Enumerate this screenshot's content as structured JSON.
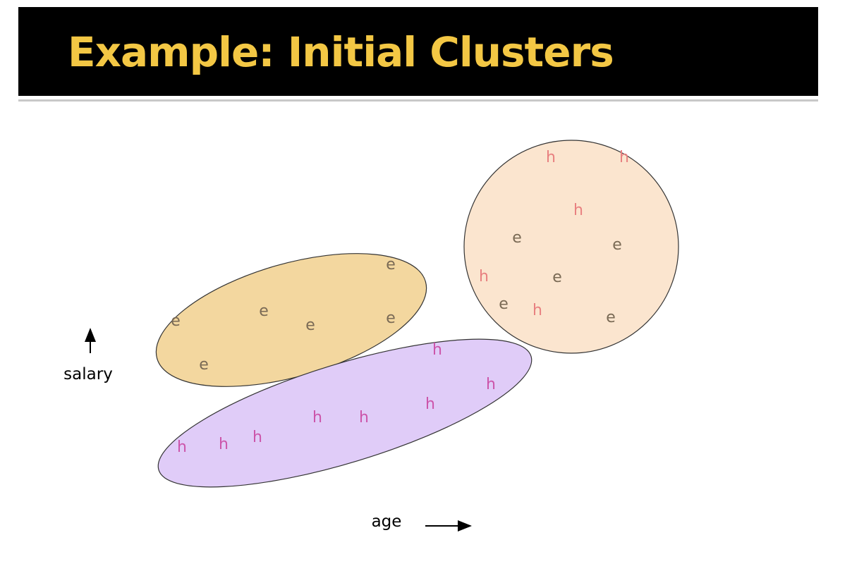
{
  "title": "Example: Initial Clusters",
  "colors": {
    "title_bar": "#000000",
    "title_text": "#f3c744",
    "cluster_left": "#f3d79f",
    "cluster_bottom": "#e0ccf8",
    "cluster_right": "#fbe5cf",
    "point_e": "#7a6a55",
    "point_h_pink": "#cc55aa",
    "point_h_salmon": "#e88080"
  },
  "axes": {
    "y_label": "salary",
    "x_label": "age"
  },
  "clusters": [
    {
      "name": "cluster-left",
      "points": [
        "e",
        "e",
        "e",
        "e",
        "e",
        "e"
      ]
    },
    {
      "name": "cluster-bottom",
      "points": [
        "h",
        "h",
        "h",
        "h",
        "h",
        "h",
        "h",
        "h"
      ]
    },
    {
      "name": "cluster-right",
      "points": [
        "h",
        "h",
        "h",
        "e",
        "e",
        "h",
        "e",
        "e",
        "h",
        "e"
      ]
    }
  ]
}
